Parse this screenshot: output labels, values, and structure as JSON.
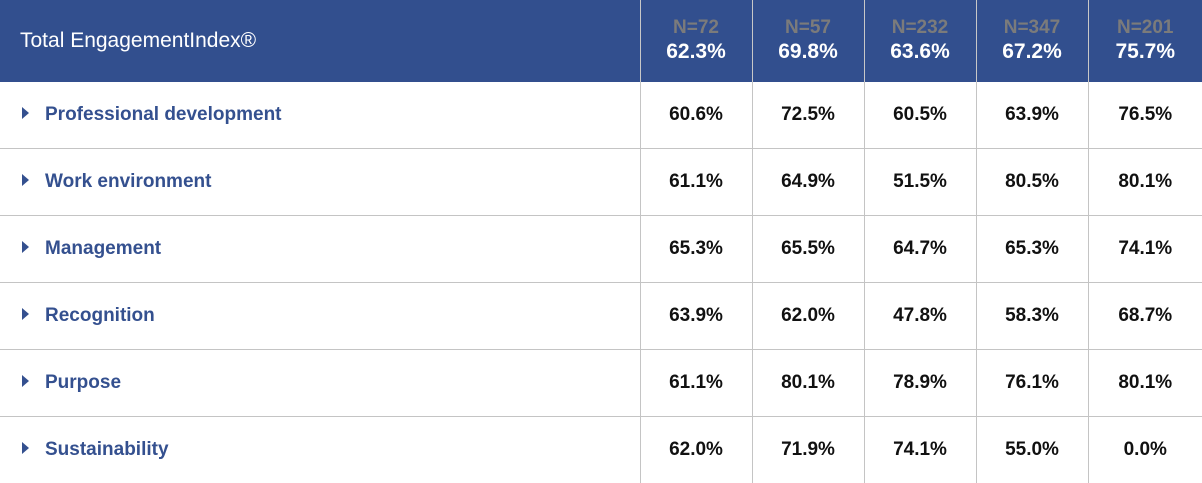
{
  "header": {
    "title": "Total EngagementIndex®",
    "columns": [
      {
        "n": "N=72",
        "pct": "62.3%"
      },
      {
        "n": "N=57",
        "pct": "69.8%"
      },
      {
        "n": "N=232",
        "pct": "63.6%"
      },
      {
        "n": "N=347",
        "pct": "67.2%"
      },
      {
        "n": "N=201",
        "pct": "75.7%"
      }
    ]
  },
  "rows": [
    {
      "label": "Professional development",
      "values": [
        "60.6%",
        "72.5%",
        "60.5%",
        "63.9%",
        "76.5%"
      ]
    },
    {
      "label": "Work environment",
      "values": [
        "61.1%",
        "64.9%",
        "51.5%",
        "80.5%",
        "80.1%"
      ]
    },
    {
      "label": "Management",
      "values": [
        "65.3%",
        "65.5%",
        "64.7%",
        "65.3%",
        "74.1%"
      ]
    },
    {
      "label": "Recognition",
      "values": [
        "63.9%",
        "62.0%",
        "47.8%",
        "58.3%",
        "68.7%"
      ]
    },
    {
      "label": "Purpose",
      "values": [
        "61.1%",
        "80.1%",
        "78.9%",
        "76.1%",
        "80.1%"
      ]
    },
    {
      "label": "Sustainability",
      "values": [
        "62.0%",
        "71.9%",
        "74.1%",
        "55.0%",
        "0.0%"
      ]
    }
  ],
  "colors": {
    "header_bg": "#324f8e",
    "label": "#34508f",
    "n_text": "#7b7b7b"
  }
}
